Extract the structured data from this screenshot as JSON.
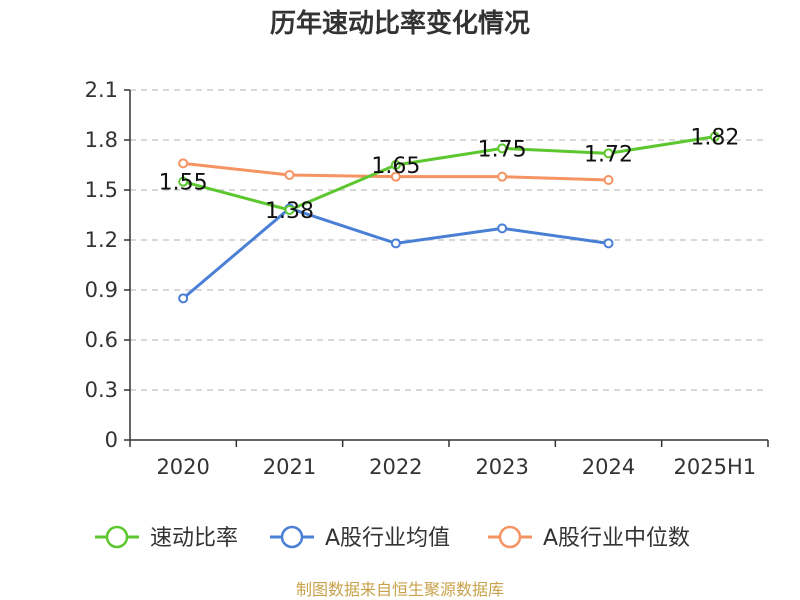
{
  "chart_data": {
    "type": "line",
    "title": "历年速动比率变化情况",
    "categories": [
      "2020",
      "2021",
      "2022",
      "2023",
      "2024",
      "2025H1"
    ],
    "yticks": [
      "0",
      "0.3",
      "0.6",
      "0.9",
      "1.2",
      "1.5",
      "1.8",
      "2.1"
    ],
    "ylim": [
      0,
      2.1
    ],
    "grid": true,
    "legend_position": "bottom",
    "series": [
      {
        "name": "速动比率",
        "color": "#5cc72e",
        "values": [
          1.55,
          1.38,
          1.65,
          1.75,
          1.72,
          1.82
        ],
        "labels": [
          "1.55",
          "1.38",
          "1.65",
          "1.75",
          "1.72",
          "1.82"
        ]
      },
      {
        "name": "A股行业均值",
        "color": "#4a7fd6",
        "values": [
          0.85,
          1.39,
          1.18,
          1.27,
          1.18,
          null
        ]
      },
      {
        "name": "A股行业中位数",
        "color": "#f59462",
        "values": [
          1.66,
          1.59,
          1.58,
          1.58,
          1.56,
          null
        ]
      }
    ],
    "source": "制图数据来自恒生聚源数据库"
  }
}
